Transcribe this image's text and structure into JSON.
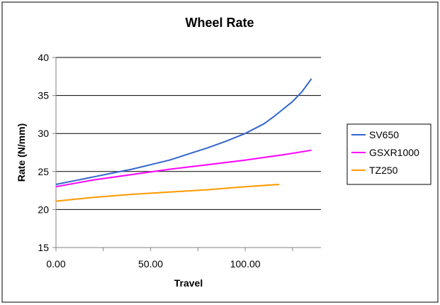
{
  "chart_data": {
    "type": "line",
    "title": "Wheel Rate",
    "xlabel": "Travel",
    "ylabel": "Rate (N/mm)",
    "xlim": [
      0,
      140
    ],
    "ylim": [
      15,
      40
    ],
    "x_ticks": [
      "0.00",
      "50.00",
      "100.00"
    ],
    "x_tick_values": [
      0,
      50,
      100
    ],
    "y_ticks": [
      "15",
      "20",
      "25",
      "30",
      "35",
      "40"
    ],
    "y_tick_values": [
      15,
      20,
      25,
      30,
      35,
      40
    ],
    "grid": "horizontal",
    "legend_position": "right",
    "plot_background": "#ffffff",
    "series": [
      {
        "name": "SV650",
        "color": "#3366cc",
        "x": [
          0,
          10,
          20,
          30,
          40,
          50,
          60,
          70,
          80,
          90,
          100,
          110,
          115,
          120,
          125,
          130,
          135
        ],
        "y": [
          23.3,
          23.8,
          24.3,
          24.8,
          25.3,
          25.9,
          26.5,
          27.3,
          28.1,
          29.0,
          30.0,
          31.3,
          32.2,
          33.2,
          34.2,
          35.5,
          37.2
        ]
      },
      {
        "name": "GSXR1000",
        "color": "#ff00ff",
        "x": [
          0,
          20,
          40,
          60,
          80,
          100,
          120,
          135
        ],
        "y": [
          23.0,
          23.9,
          24.6,
          25.3,
          25.9,
          26.5,
          27.2,
          27.8
        ]
      },
      {
        "name": "TZ250",
        "color": "#ff9900",
        "x": [
          0,
          20,
          40,
          60,
          80,
          100,
          118
        ],
        "y": [
          21.1,
          21.6,
          22.0,
          22.3,
          22.6,
          23.0,
          23.3
        ]
      }
    ]
  }
}
